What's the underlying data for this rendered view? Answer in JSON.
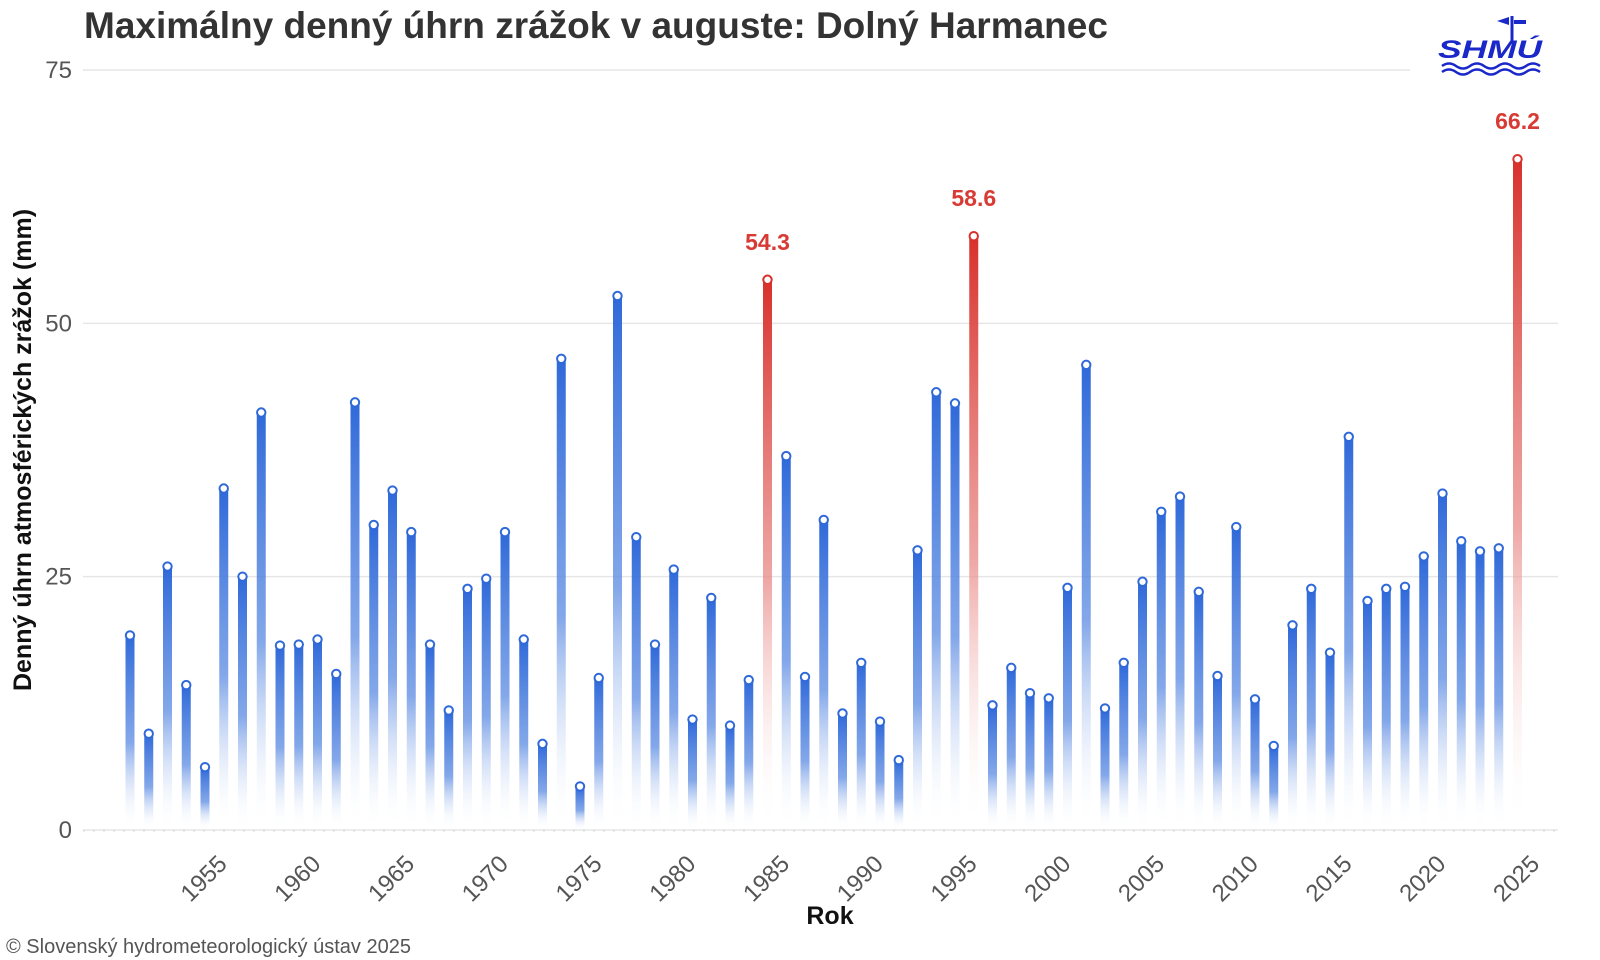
{
  "chart_data": {
    "type": "bar",
    "title": "Maximálny denný úhrn zrážok v auguste: Dolný Harmanec",
    "xlabel": "Rok",
    "ylabel": "Denný úhrn atmosférických zrážok (mm)",
    "ylim": [
      0,
      75
    ],
    "yticks": [
      0,
      25,
      50,
      75
    ],
    "xticks": [
      1955,
      1960,
      1965,
      1970,
      1975,
      1980,
      1985,
      1990,
      1995,
      2000,
      2005,
      2010,
      2015,
      2020,
      2025
    ],
    "grid": true,
    "x": [
      1951,
      1952,
      1953,
      1954,
      1955,
      1956,
      1957,
      1958,
      1959,
      1960,
      1961,
      1962,
      1963,
      1964,
      1965,
      1966,
      1967,
      1968,
      1969,
      1970,
      1971,
      1972,
      1973,
      1974,
      1975,
      1976,
      1977,
      1978,
      1979,
      1980,
      1981,
      1982,
      1983,
      1984,
      1985,
      1986,
      1987,
      1988,
      1989,
      1990,
      1991,
      1992,
      1993,
      1994,
      1995,
      1996,
      1997,
      1998,
      1999,
      2000,
      2001,
      2002,
      2003,
      2004,
      2005,
      2006,
      2007,
      2008,
      2009,
      2010,
      2011,
      2012,
      2013,
      2014,
      2015,
      2016,
      2017,
      2018,
      2019,
      2020,
      2021,
      2022,
      2023,
      2024,
      2025
    ],
    "values": [
      19.2,
      9.5,
      26.0,
      14.3,
      6.2,
      33.7,
      25.0,
      41.2,
      18.2,
      18.3,
      18.8,
      15.4,
      42.2,
      30.1,
      33.5,
      29.4,
      18.3,
      11.8,
      23.8,
      24.8,
      29.4,
      18.8,
      8.5,
      46.5,
      4.3,
      15.0,
      52.7,
      28.9,
      18.3,
      25.7,
      10.9,
      22.9,
      10.3,
      14.8,
      54.3,
      36.9,
      15.1,
      30.6,
      11.5,
      16.5,
      10.7,
      6.9,
      27.6,
      43.2,
      42.1,
      58.6,
      12.3,
      16.0,
      13.5,
      13.0,
      23.9,
      45.9,
      12.0,
      16.5,
      24.5,
      31.4,
      32.9,
      23.5,
      15.2,
      29.9,
      12.9,
      8.3,
      20.2,
      23.8,
      17.5,
      38.8,
      22.6,
      23.8,
      24.0,
      27.0,
      33.2,
      28.5,
      27.5,
      27.8,
      66.2
    ],
    "highlighted": [
      {
        "x": 1985,
        "value": 54.3,
        "label": "54.3"
      },
      {
        "x": 1996,
        "value": 58.6,
        "label": "58.6"
      },
      {
        "x": 2025,
        "value": 66.2,
        "label": "66.2"
      }
    ],
    "colors": {
      "normal": "#2f69d9",
      "highlight": "#d8302b",
      "grid": "#e6e6e6",
      "label": "#d83a34"
    }
  },
  "credit": "© Slovenský hydrometeorologický ústav 2025",
  "logo": {
    "text": "SHMÚ",
    "color": "#1a27c9",
    "icon": "weather-vane-waves-icon"
  }
}
